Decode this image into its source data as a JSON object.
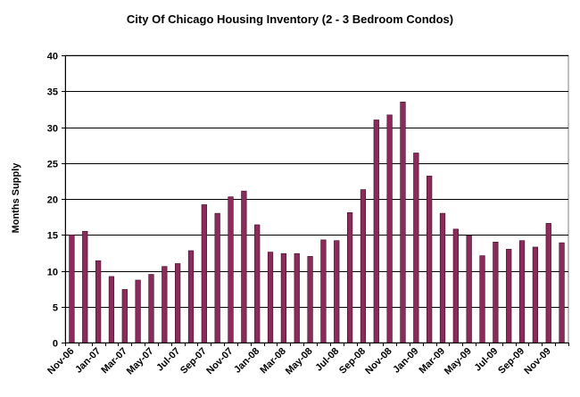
{
  "chart_data": {
    "type": "bar",
    "title": "City Of Chicago Housing Inventory (2 - 3 Bedroom Condos)",
    "xlabel": "",
    "ylabel": "Months Supply",
    "ylim": [
      0,
      40
    ],
    "yticks": [
      0,
      5,
      10,
      15,
      20,
      25,
      30,
      35,
      40
    ],
    "grid": true,
    "bar_color": "#8B2A5B",
    "categories": [
      "Nov-06",
      "Dec-06",
      "Jan-07",
      "Feb-07",
      "Mar-07",
      "Apr-07",
      "May-07",
      "Jun-07",
      "Jul-07",
      "Aug-07",
      "Sep-07",
      "Oct-07",
      "Nov-07",
      "Dec-07",
      "Jan-08",
      "Feb-08",
      "Mar-08",
      "Apr-08",
      "May-08",
      "Jun-08",
      "Jul-08",
      "Aug-08",
      "Sep-08",
      "Oct-08",
      "Nov-08",
      "Dec-08",
      "Jan-09",
      "Feb-09",
      "Mar-09",
      "Apr-09",
      "May-09",
      "Jun-09",
      "Jul-09",
      "Aug-09",
      "Sep-09",
      "Oct-09",
      "Nov-09",
      "Dec-09"
    ],
    "x_tick_labels": [
      "Nov-06",
      "",
      "Jan-07",
      "",
      "Mar-07",
      "",
      "May-07",
      "",
      "Jul-07",
      "",
      "Sep-07",
      "",
      "Nov-07",
      "",
      "Jan-08",
      "",
      "Mar-08",
      "",
      "May-08",
      "",
      "Jul-08",
      "",
      "Sep-08",
      "",
      "Nov-08",
      "",
      "Jan-09",
      "",
      "Mar-09",
      "",
      "May-09",
      "",
      "Jul-09",
      "",
      "Sep-09",
      "",
      "Nov-09",
      ""
    ],
    "values": [
      15.0,
      15.5,
      11.4,
      9.2,
      7.4,
      8.7,
      9.5,
      10.6,
      11.0,
      12.8,
      19.2,
      18.0,
      20.3,
      21.1,
      16.4,
      12.6,
      12.4,
      12.4,
      12.0,
      14.3,
      14.2,
      18.1,
      21.3,
      31.0,
      31.7,
      33.5,
      26.4,
      23.2,
      18.0,
      15.8,
      14.9,
      12.1,
      14.0,
      13.0,
      14.2,
      13.3,
      16.6,
      13.9
    ]
  }
}
